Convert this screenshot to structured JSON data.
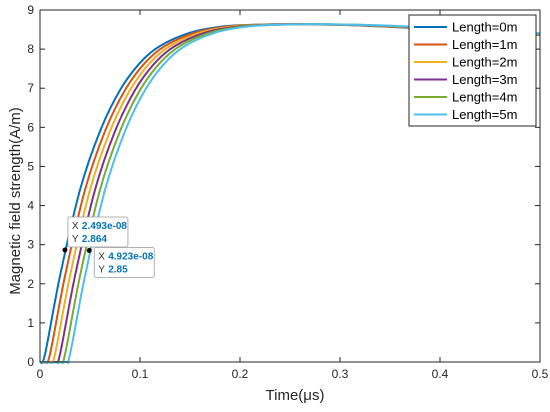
{
  "chart_data": {
    "type": "line",
    "xlabel": "Time(μs)",
    "ylabel": "Magnetic field strength(A/m)",
    "xlim": [
      0,
      0.5
    ],
    "ylim": [
      0,
      9
    ],
    "xticks": [
      "0",
      "0.1",
      "0.2",
      "0.3",
      "0.4",
      "0.5"
    ],
    "yticks": [
      "0",
      "1",
      "2",
      "3",
      "4",
      "5",
      "6",
      "7",
      "8",
      "9"
    ],
    "grid": false,
    "legend_position": "top-right",
    "series": [
      {
        "name": "Length=0m",
        "color": "#0072BD",
        "delay": 0.0,
        "x": [
          0,
          0.005,
          0.02,
          0.04,
          0.06,
          0.08,
          0.1,
          0.12,
          0.15,
          0.18,
          0.21,
          0.25,
          0.3,
          0.35,
          0.4,
          0.45,
          0.5
        ],
        "y": [
          0,
          0.2,
          2.2,
          4.4,
          5.9,
          6.95,
          7.65,
          8.08,
          8.42,
          8.57,
          8.62,
          8.64,
          8.62,
          8.57,
          8.5,
          8.43,
          8.36
        ]
      },
      {
        "name": "Length=1m",
        "color": "#D95319",
        "delay": 0.005,
        "x": [
          0,
          0.005,
          0.01,
          0.025,
          0.045,
          0.065,
          0.085,
          0.105,
          0.125,
          0.155,
          0.185,
          0.215,
          0.255,
          0.305,
          0.355,
          0.405,
          0.455,
          0.5
        ],
        "y": [
          0,
          0,
          0.2,
          2.2,
          4.4,
          5.9,
          6.95,
          7.65,
          8.08,
          8.42,
          8.57,
          8.62,
          8.64,
          8.62,
          8.57,
          8.5,
          8.43,
          8.37
        ]
      },
      {
        "name": "Length=2m",
        "color": "#EDB120",
        "delay": 0.01,
        "x": [
          0,
          0.01,
          0.015,
          0.03,
          0.05,
          0.07,
          0.09,
          0.11,
          0.13,
          0.16,
          0.19,
          0.22,
          0.26,
          0.31,
          0.36,
          0.41,
          0.46,
          0.5
        ],
        "y": [
          0,
          0,
          0.2,
          2.2,
          4.4,
          5.9,
          6.95,
          7.65,
          8.08,
          8.42,
          8.57,
          8.62,
          8.64,
          8.62,
          8.57,
          8.5,
          8.43,
          8.38
        ]
      },
      {
        "name": "Length=3m",
        "color": "#7E2F8E",
        "delay": 0.015,
        "x": [
          0,
          0.015,
          0.02,
          0.035,
          0.055,
          0.075,
          0.095,
          0.115,
          0.135,
          0.165,
          0.195,
          0.225,
          0.265,
          0.315,
          0.365,
          0.415,
          0.465,
          0.5
        ],
        "y": [
          0,
          0,
          0.2,
          2.2,
          4.4,
          5.9,
          6.95,
          7.65,
          8.08,
          8.42,
          8.57,
          8.62,
          8.64,
          8.62,
          8.57,
          8.5,
          8.43,
          8.39
        ]
      },
      {
        "name": "Length=4m",
        "color": "#77AC30",
        "delay": 0.02,
        "x": [
          0,
          0.02,
          0.025,
          0.04,
          0.06,
          0.08,
          0.1,
          0.12,
          0.14,
          0.17,
          0.2,
          0.23,
          0.27,
          0.32,
          0.37,
          0.42,
          0.47,
          0.5
        ],
        "y": [
          0,
          0,
          0.2,
          2.2,
          4.4,
          5.9,
          6.95,
          7.65,
          8.08,
          8.42,
          8.57,
          8.62,
          8.64,
          8.62,
          8.57,
          8.5,
          8.43,
          8.4
        ]
      },
      {
        "name": "Length=5m",
        "color": "#4DBEEE",
        "delay": 0.025,
        "x": [
          0,
          0.025,
          0.03,
          0.045,
          0.065,
          0.085,
          0.105,
          0.125,
          0.145,
          0.175,
          0.205,
          0.235,
          0.275,
          0.325,
          0.375,
          0.425,
          0.475,
          0.5
        ],
        "y": [
          0,
          0,
          0.2,
          2.2,
          4.4,
          5.9,
          6.95,
          7.65,
          8.08,
          8.42,
          8.57,
          8.62,
          8.64,
          8.62,
          8.57,
          8.5,
          8.43,
          8.41
        ]
      }
    ],
    "datatips": [
      {
        "x_label": "X",
        "x_value": "2.493e-08",
        "y_label": "Y",
        "y_value": "2.864",
        "x": 0.02493,
        "y": 2.864
      },
      {
        "x_label": "X",
        "x_value": "4.923e-08",
        "y_label": "Y",
        "y_value": "2.85",
        "x": 0.04923,
        "y": 2.85
      }
    ]
  }
}
